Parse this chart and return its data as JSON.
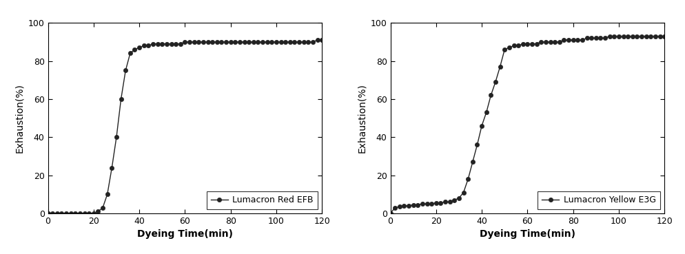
{
  "chart1": {
    "xlabel": "Dyeing Time(min)",
    "ylabel": "Exhaustion(%)",
    "legend_label": "Lumacron Red EFB",
    "x": [
      0,
      2,
      4,
      6,
      8,
      10,
      12,
      14,
      16,
      18,
      20,
      22,
      24,
      26,
      28,
      30,
      32,
      34,
      36,
      38,
      40,
      42,
      44,
      46,
      48,
      50,
      52,
      54,
      56,
      58,
      60,
      62,
      64,
      66,
      68,
      70,
      72,
      74,
      76,
      78,
      80,
      82,
      84,
      86,
      88,
      90,
      92,
      94,
      96,
      98,
      100,
      102,
      104,
      106,
      108,
      110,
      112,
      114,
      116,
      118,
      120
    ],
    "y": [
      0,
      0,
      0,
      0,
      0,
      0,
      0,
      0,
      0,
      0,
      0,
      1,
      3,
      10,
      24,
      40,
      60,
      75,
      84,
      86,
      87,
      88,
      88,
      89,
      89,
      89,
      89,
      89,
      89,
      89,
      90,
      90,
      90,
      90,
      90,
      90,
      90,
      90,
      90,
      90,
      90,
      90,
      90,
      90,
      90,
      90,
      90,
      90,
      90,
      90,
      90,
      90,
      90,
      90,
      90,
      90,
      90,
      90,
      90,
      91,
      91
    ],
    "xlim": [
      0,
      120
    ],
    "ylim": [
      0,
      100
    ],
    "xticks": [
      0,
      20,
      40,
      60,
      80,
      100,
      120
    ],
    "yticks": [
      0,
      20,
      40,
      60,
      80,
      100
    ]
  },
  "chart2": {
    "xlabel": "Dyeing Time(min)",
    "ylabel": "Exhaustion(%)",
    "legend_label": "Lumacron Yellow E3G",
    "x": [
      0,
      2,
      4,
      6,
      8,
      10,
      12,
      14,
      16,
      18,
      20,
      22,
      24,
      26,
      28,
      30,
      32,
      34,
      36,
      38,
      40,
      42,
      44,
      46,
      48,
      50,
      52,
      54,
      56,
      58,
      60,
      62,
      64,
      66,
      68,
      70,
      72,
      74,
      76,
      78,
      80,
      82,
      84,
      86,
      88,
      90,
      92,
      94,
      96,
      98,
      100,
      102,
      104,
      106,
      108,
      110,
      112,
      114,
      116,
      118,
      120
    ],
    "y": [
      0,
      3,
      3.5,
      4,
      4,
      4.5,
      4.5,
      5,
      5,
      5,
      5.5,
      5.5,
      6,
      6,
      7,
      8,
      11,
      18,
      27,
      36,
      46,
      53,
      62,
      69,
      77,
      86,
      87,
      88,
      88,
      89,
      89,
      89,
      89,
      90,
      90,
      90,
      90,
      90,
      91,
      91,
      91,
      91,
      91,
      92,
      92,
      92,
      92,
      92,
      93,
      93,
      93,
      93,
      93,
      93,
      93,
      93,
      93,
      93,
      93,
      93,
      93
    ],
    "xlim": [
      0,
      120
    ],
    "ylim": [
      0,
      100
    ],
    "xticks": [
      0,
      20,
      40,
      60,
      80,
      100,
      120
    ],
    "yticks": [
      0,
      20,
      40,
      60,
      80,
      100
    ]
  },
  "line_color": "#222222",
  "marker": "o",
  "markersize": 4.5,
  "linewidth": 1.0,
  "legend_fontsize": 9,
  "axis_label_fontsize": 10,
  "tick_fontsize": 9,
  "legend_loc": "lower right",
  "background_color": "#ffffff",
  "spine_color": "#000000",
  "figure_width": 9.94,
  "figure_height": 3.69,
  "dpi": 100
}
